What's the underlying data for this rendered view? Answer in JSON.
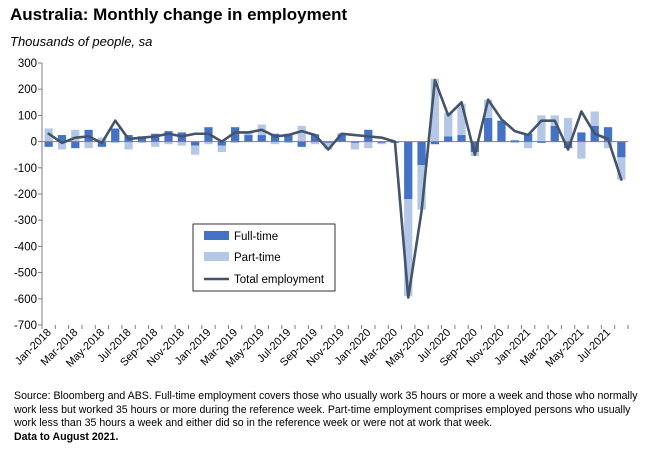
{
  "header": {
    "title": "Australia: Monthly change in employment",
    "subtitle": "Thousands of people, sa"
  },
  "footnote": {
    "source": "Source: Bloomberg and ABS.  Full-time employment covers those who usually work 35 hours or more a week and those who normally work less but worked 35 hours or  more during the reference week.  Part-time employment comprises employed persons who usually work less than 35 hours a week and either did so in the reference week or were not at work that week.",
    "data_note": "Data to  August 2021."
  },
  "colors": {
    "full_time": "#4472C4",
    "part_time": "#B4C7E7",
    "total": "#44546A",
    "axis": "#7f7f7f"
  },
  "chart_data": {
    "type": "bar",
    "title": "Australia: Monthly change in employment",
    "ylabel": "Thousands of people, sa",
    "ylim": [
      -700,
      300
    ],
    "yticks": [
      300,
      200,
      100,
      0,
      -100,
      -200,
      -300,
      -400,
      -500,
      -600,
      -700
    ],
    "grid": false,
    "legend_position": "lower-left",
    "categories": [
      "Jan-2018",
      "Feb-2018",
      "Mar-2018",
      "Apr-2018",
      "May-2018",
      "Jun-2018",
      "Jul-2018",
      "Aug-2018",
      "Sep-2018",
      "Oct-2018",
      "Nov-2018",
      "Dec-2018",
      "Jan-2019",
      "Feb-2019",
      "Mar-2019",
      "Apr-2019",
      "May-2019",
      "Jun-2019",
      "Jul-2019",
      "Aug-2019",
      "Sep-2019",
      "Oct-2019",
      "Nov-2019",
      "Dec-2019",
      "Jan-2020",
      "Feb-2020",
      "Mar-2020",
      "Apr-2020",
      "May-2020",
      "Jun-2020",
      "Jul-2020",
      "Aug-2020",
      "Sep-2020",
      "Oct-2020",
      "Nov-2020",
      "Dec-2020",
      "Jan-2021",
      "Feb-2021",
      "Mar-2021",
      "Apr-2021",
      "May-2021",
      "Jun-2021",
      "Jul-2021",
      "Aug-2021"
    ],
    "tick_labels": [
      "Jan-2018",
      "Mar-2018",
      "May-2018",
      "Jul-2018",
      "Sep-2018",
      "Nov-2018",
      "Jan-2019",
      "Mar-2019",
      "May-2019",
      "Jul-2019",
      "Sep-2019",
      "Nov-2019",
      "Jan-2020",
      "Mar-2020",
      "May-2020",
      "Jul-2020",
      "Sep-2020",
      "Nov-2020",
      "Jan-2021",
      "Mar-2021",
      "May-2021",
      "Jul-2021"
    ],
    "series": [
      {
        "name": "Full-time",
        "kind": "bar",
        "values": [
          -20,
          25,
          -25,
          45,
          -20,
          50,
          25,
          20,
          30,
          40,
          35,
          -15,
          55,
          -15,
          55,
          25,
          25,
          30,
          30,
          -20,
          28,
          -5,
          28,
          -5,
          45,
          -5,
          -5,
          -220,
          -90,
          -10,
          20,
          25,
          -40,
          90,
          80,
          5,
          30,
          -5,
          60,
          -25,
          35,
          60,
          55,
          -60
        ]
      },
      {
        "name": "Part-time",
        "kind": "bar",
        "values": [
          50,
          -30,
          45,
          -25,
          15,
          -5,
          -30,
          -5,
          -20,
          -10,
          -15,
          -35,
          -10,
          -25,
          -5,
          10,
          40,
          -10,
          -5,
          60,
          -10,
          -25,
          5,
          -25,
          -25,
          -5,
          0,
          -370,
          -170,
          240,
          90,
          120,
          -15,
          70,
          0,
          -5,
          -25,
          100,
          40,
          90,
          -65,
          55,
          -25,
          -85
        ]
      },
      {
        "name": "Total employment",
        "kind": "line",
        "values": [
          30,
          -5,
          15,
          20,
          -5,
          80,
          10,
          15,
          20,
          30,
          20,
          30,
          30,
          0,
          35,
          35,
          45,
          20,
          25,
          40,
          25,
          -30,
          30,
          25,
          20,
          15,
          0,
          -595,
          -265,
          235,
          100,
          150,
          -50,
          160,
          85,
          40,
          25,
          80,
          80,
          -30,
          115,
          30,
          10,
          -145
        ]
      }
    ]
  }
}
